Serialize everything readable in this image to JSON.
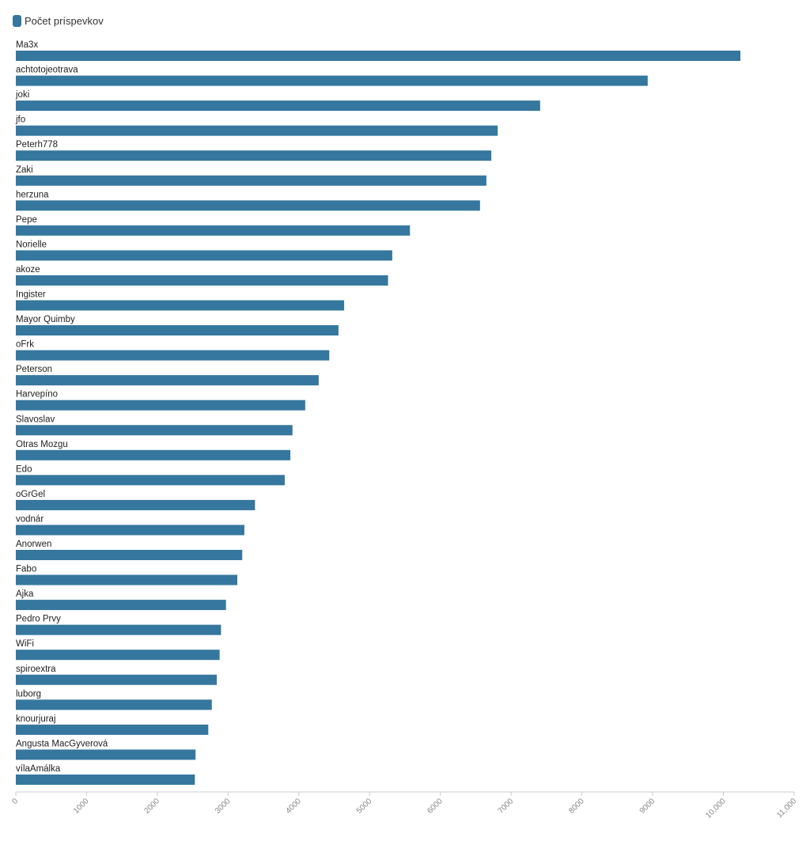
{
  "chart_data": {
    "type": "bar",
    "orientation": "horizontal",
    "legend": {
      "label": "Počet príspevkov",
      "position": "top-left"
    },
    "color": "#35779e",
    "categories": [
      "Ma3x",
      "achtotojeotrava",
      "joki",
      "jfo",
      "Peterh778",
      "Zaki",
      "herzuna",
      "Pepe",
      "Norielle",
      "akoze",
      "Ingister",
      "Mayor Quimby",
      "oFrk",
      "Peterson",
      "Harvepíno",
      "Slavoslav",
      "Otras Mozgu",
      "Edo",
      "oGrGel",
      "vodnár",
      "Anorwen",
      "Fabo",
      "Ajka",
      "Pedro Prvy",
      "WiFi",
      "spiroextra",
      "luborg",
      "knourjuraj",
      "Angusta MacGyverová",
      "vílaAmálka"
    ],
    "series": [
      {
        "values": [
          10240,
          8930,
          7410,
          6810,
          6720,
          6650,
          6560,
          5570,
          5320,
          5260,
          4640,
          4560,
          4430,
          4280,
          4090,
          3910,
          3880,
          3800,
          3380,
          3230,
          3200,
          3130,
          2970,
          2900,
          2880,
          2840,
          2770,
          2720,
          2540,
          2530
        ]
      }
    ],
    "x_ticks": [
      "0",
      "1000",
      "2000",
      "3000",
      "4000",
      "5000",
      "6000",
      "7000",
      "8000",
      "9000",
      "10,000",
      "11,000"
    ],
    "xlim": [
      0,
      11000
    ],
    "grid": false
  }
}
